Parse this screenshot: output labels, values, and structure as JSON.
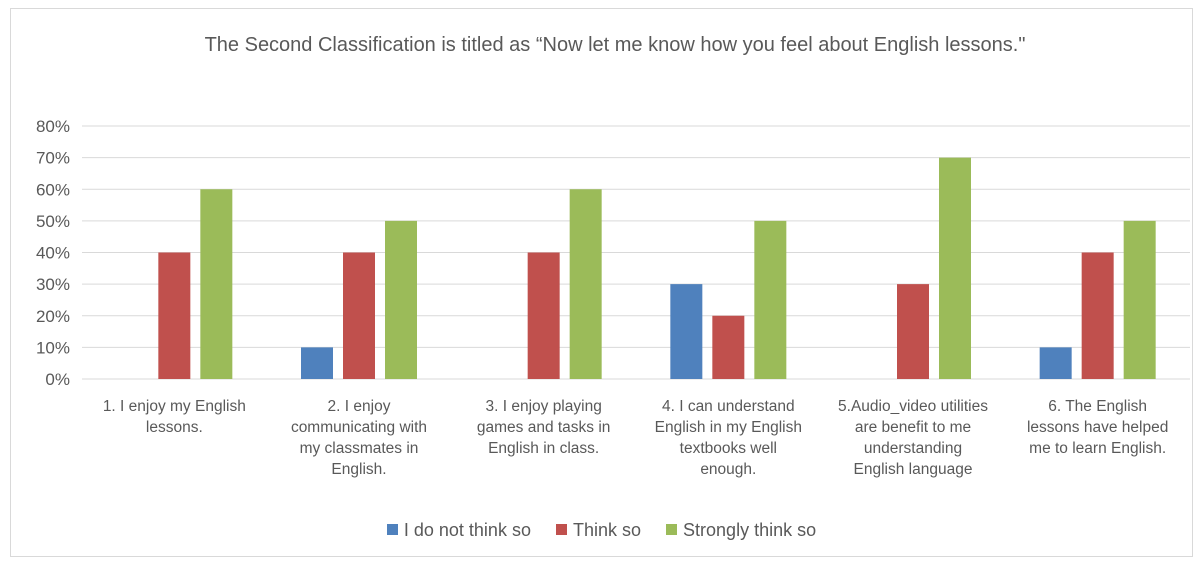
{
  "chart_data": {
    "type": "bar",
    "title": "The Second Classification is titled as “Now let me know how you feel about English lessons.\"",
    "categories": [
      "1. I enjoy my English lessons.",
      "2. I enjoy communicating with my classmates in English.",
      "3. I enjoy playing games and tasks in English in class.",
      "4. I can understand English in my English textbooks well enough.",
      "5.Audio_video utilities are benefit to me understanding English language",
      "6. The English lessons have helped me to learn English."
    ],
    "series": [
      {
        "name": "I do not think so",
        "values": [
          0,
          10,
          0,
          30,
          0,
          10
        ],
        "color": "#4f81bd"
      },
      {
        "name": "Think so",
        "values": [
          40,
          40,
          40,
          20,
          30,
          40
        ],
        "color": "#c0504d"
      },
      {
        "name": "Strongly think so",
        "values": [
          60,
          50,
          60,
          50,
          70,
          50
        ],
        "color": "#9bbb59"
      }
    ],
    "ylim": [
      0,
      80
    ],
    "yticks": [
      "0%",
      "10%",
      "20%",
      "30%",
      "40%",
      "50%",
      "60%",
      "70%",
      "80%"
    ],
    "grid": true,
    "legend_position": "bottom"
  }
}
